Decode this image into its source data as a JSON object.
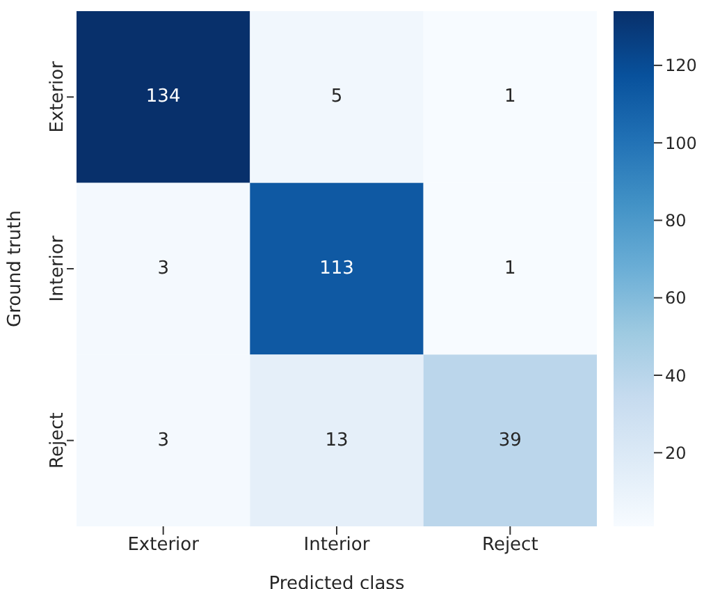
{
  "chart_data": {
    "type": "heatmap",
    "xlabel": "Predicted class",
    "ylabel": "Ground truth",
    "categories": [
      "Exterior",
      "Interior",
      "Reject"
    ],
    "y_categories": [
      "Exterior",
      "Interior",
      "Reject"
    ],
    "cells": [
      [
        134,
        5,
        1
      ],
      [
        3,
        113,
        1
      ],
      [
        3,
        13,
        39
      ]
    ],
    "data_labels": true,
    "clim": [
      1,
      134
    ],
    "cticks": [
      20,
      40,
      60,
      80,
      100,
      120
    ]
  }
}
